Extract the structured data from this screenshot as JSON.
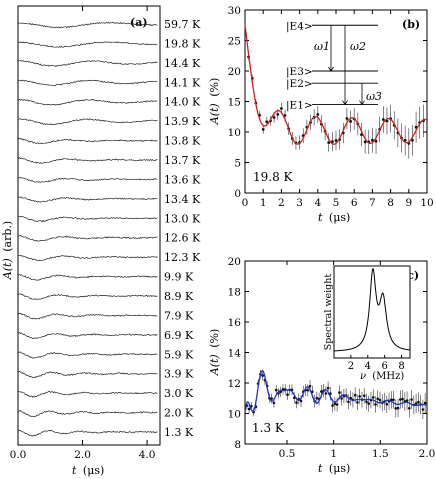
{
  "chart_data": [
    {
      "panel": "(a)",
      "type": "line",
      "xlabel_A": "t",
      "xlabel_unit": "(μs)",
      "ylabel_A": "A(t)",
      "ylabel_unit": "(arb.)",
      "xlim": [
        0.0,
        4.4
      ],
      "xticks": [
        0.0,
        2.0,
        4.0
      ],
      "xtick_labels": [
        "0.0",
        "2.0",
        "4.0"
      ],
      "series_labels": [
        "59.7 K",
        "19.8 K",
        "14.4 K",
        "14.1 K",
        "14.0 K",
        "13.9 K",
        "13.8 K",
        "13.7 K",
        "13.6 K",
        "13.4 K",
        "13.0 K",
        "12.6 K",
        "12.3 K",
        "9.9 K",
        "8.9 K",
        "7.9 K",
        "6.9 K",
        "5.9 K",
        "3.9 K",
        "3.0 K",
        "2.0 K",
        "1.3 K"
      ],
      "temperatures_K": [
        59.7,
        19.8,
        14.4,
        14.1,
        14.0,
        13.9,
        13.8,
        13.7,
        13.6,
        13.4,
        13.0,
        12.6,
        12.3,
        9.9,
        8.9,
        7.9,
        6.9,
        5.9,
        3.9,
        3.0,
        2.0,
        1.3
      ]
    },
    {
      "panel": "(b)",
      "type": "scatter",
      "annotation": "19.8 K",
      "xlabel_A": "t",
      "xlabel_unit": "(μs)",
      "ylabel_A": "A(t)",
      "ylabel_unit": "(%)",
      "xlim": [
        0,
        10
      ],
      "ylim": [
        0,
        30
      ],
      "xticks": [
        0,
        1,
        2,
        3,
        4,
        5,
        6,
        7,
        8,
        9,
        10
      ],
      "yticks": [
        0,
        5,
        10,
        15,
        20,
        25,
        30
      ],
      "fit_color": "#cc2222",
      "fit_model": {
        "A0": 10.2,
        "A1": 15.0,
        "tau": 0.65,
        "B": 2.6,
        "f": 0.25,
        "phase": 0.35
      },
      "points_x": [
        0.2,
        0.4,
        0.6,
        0.8,
        1.0,
        1.2,
        1.4,
        1.6,
        1.8,
        2.0,
        2.2,
        2.4,
        2.6,
        2.8,
        3.0,
        3.2,
        3.4,
        3.6,
        3.8,
        4.0,
        4.2,
        4.4,
        4.6,
        4.8,
        5.0,
        5.2,
        5.4,
        5.6,
        5.8,
        6.0,
        6.2,
        6.4,
        6.6,
        6.8,
        7.0,
        7.2,
        7.4,
        7.6,
        7.8,
        8.0,
        8.2,
        8.4,
        8.6,
        8.8,
        9.0,
        9.2,
        9.4,
        9.6,
        9.8
      ],
      "levels": [
        "|E4>",
        "|E3>",
        "|E2>",
        "|E1>"
      ],
      "level_values": [
        27.5,
        20.0,
        18.0,
        14.5
      ],
      "transitions": [
        "ω1",
        "ω2",
        "ω3"
      ]
    },
    {
      "panel": "(c)",
      "type": "scatter",
      "annotation": "1.3 K",
      "xlabel_A": "t",
      "xlabel_unit": "(μs)",
      "ylabel_A": "A(t)",
      "ylabel_unit": "(%)",
      "xlim": [
        0.05,
        2.0
      ],
      "ylim": [
        8,
        20
      ],
      "xticks": [
        0.5,
        1.0,
        1.5,
        2.0
      ],
      "xtick_labels": [
        "0.5",
        "1",
        "1.5",
        "2.0"
      ],
      "yticks": [
        8,
        10,
        12,
        14,
        16,
        18,
        20
      ],
      "fit_color": "#2233cc",
      "fit_model": {
        "A0": 11.6,
        "tau": 0.55,
        "A1": 1.2,
        "f1": 4.6,
        "A2": 0.9,
        "f2": 5.8
      },
      "inset": {
        "ylabel": "Spectral weight",
        "xlabel_A": "ν",
        "xlabel_unit": "(MHz)",
        "xlim": [
          0,
          9
        ],
        "xticks": [
          2,
          4,
          6,
          8
        ],
        "peaks_MHz": [
          4.6,
          5.8
        ],
        "peak_heights": [
          1.0,
          0.65
        ]
      }
    }
  ]
}
